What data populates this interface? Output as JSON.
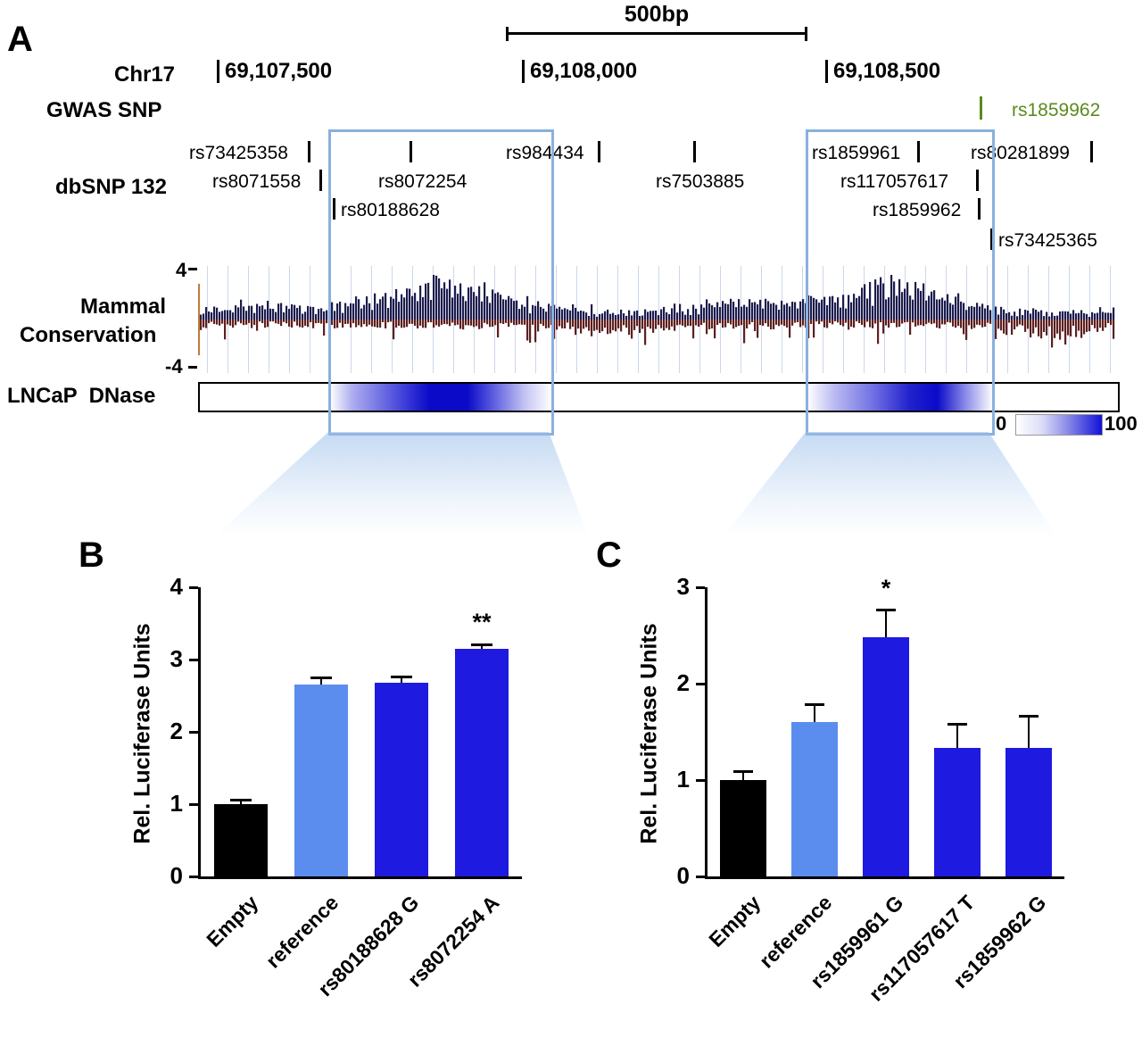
{
  "panel_labels": {
    "A": "A",
    "B": "B",
    "C": "C"
  },
  "panelA": {
    "scale_label": "500bp",
    "chrom_label": "Chr17",
    "coords": [
      "69,107,500",
      "69,108,000",
      "69,108,500"
    ],
    "gwas": {
      "label": "GWAS SNP",
      "snp": "rs1859962",
      "color": "#5a8a1e"
    },
    "dbsnp": {
      "label": "dbSNP 132",
      "snps": [
        "rs73425358",
        "rs984434",
        "rs1859961",
        "rs80281899",
        "rs8071558",
        "rs8072254",
        "rs7503885",
        "rs117057617",
        "rs80188628",
        "rs1859962",
        "rs73425365"
      ]
    },
    "conservation": {
      "label_top": "Mammal",
      "label_bottom": "Conservation",
      "axis_max": "4",
      "axis_min": "-4",
      "pos_color": "#1c1c4e",
      "neg_color": "#5e1f1f"
    },
    "dnase": {
      "label": "LNCaP  DNase"
    },
    "heat_legend": {
      "min": "0",
      "max": "100"
    }
  },
  "chart_data": [
    {
      "id": "B",
      "type": "bar",
      "ylabel": "Rel. Luciferase Units",
      "ylim": [
        0,
        4
      ],
      "yticks": [
        0,
        1,
        2,
        3,
        4
      ],
      "categories": [
        "Empty",
        "reference",
        "rs80188628 G",
        "rs8072254 A"
      ],
      "values": [
        1.0,
        2.65,
        2.68,
        3.15
      ],
      "errors": [
        0.05,
        0.1,
        0.08,
        0.06
      ],
      "bar_colors": [
        "#000000",
        "#5b8def",
        "#1f1ae0",
        "#1f1ae0"
      ],
      "annotations": [
        {
          "bar": 3,
          "text": "**"
        }
      ]
    },
    {
      "id": "C",
      "type": "bar",
      "ylabel": "Rel. Luciferase Units",
      "ylim": [
        0,
        3
      ],
      "yticks": [
        0,
        1,
        2,
        3
      ],
      "categories": [
        "Empty",
        "reference",
        "rs1859961 G",
        "rs117057617 T",
        "rs1859962 G"
      ],
      "values": [
        1.0,
        1.6,
        2.48,
        1.33,
        1.33
      ],
      "errors": [
        0.09,
        0.18,
        0.28,
        0.25,
        0.33
      ],
      "bar_colors": [
        "#000000",
        "#5b8def",
        "#1f1ae0",
        "#1f1ae0",
        "#1f1ae0"
      ],
      "annotations": [
        {
          "bar": 2,
          "text": "*"
        }
      ]
    }
  ]
}
